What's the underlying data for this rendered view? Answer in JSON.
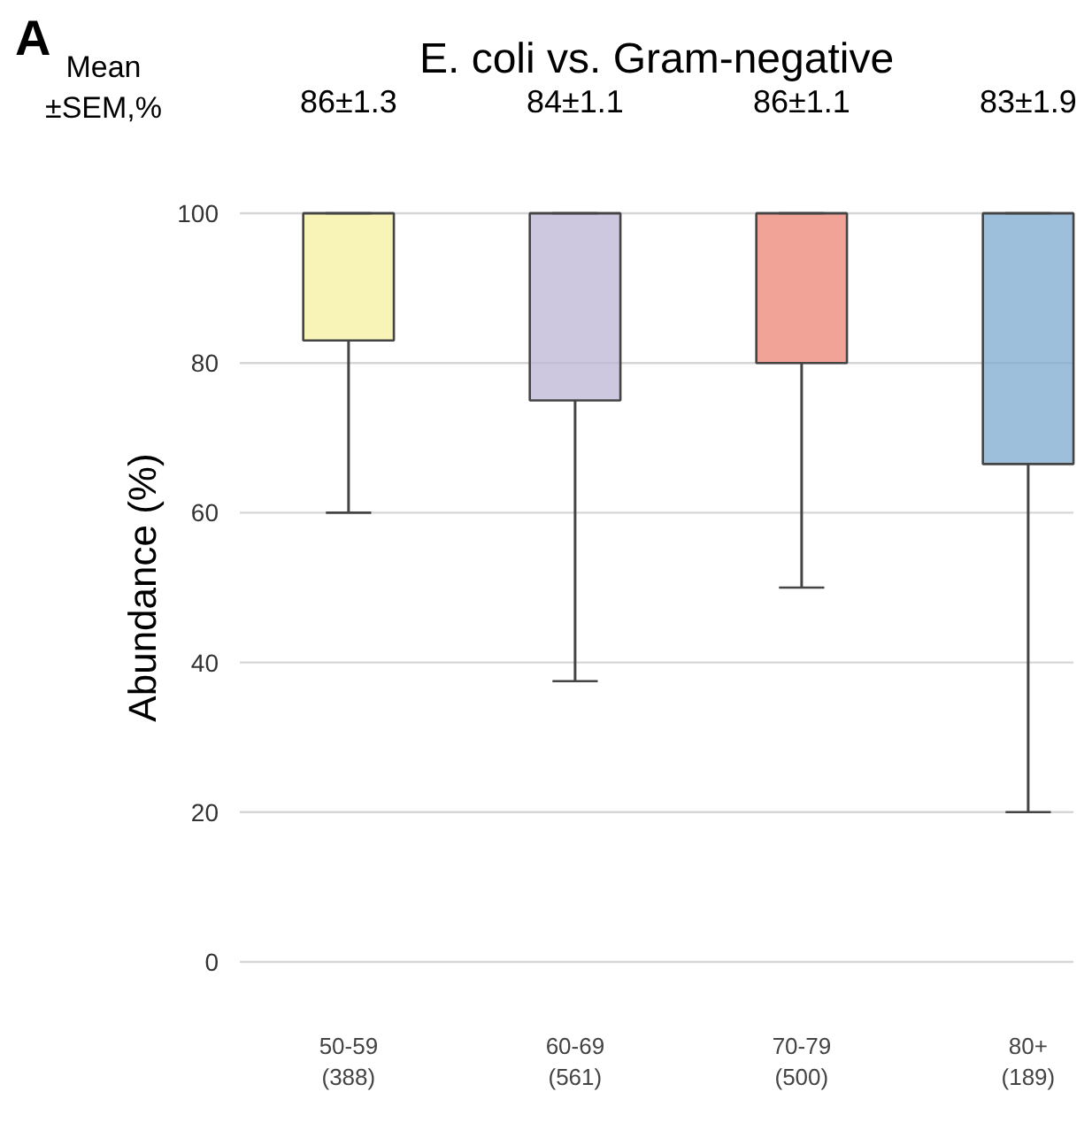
{
  "chart_data": {
    "type": "box",
    "title": "E. coli vs. Gram-negative",
    "ylabel": "Abundance (%)",
    "categories": [
      "50-59\n(388)",
      "60-69\n(561)",
      "70-79\n(500)",
      "80+\n(189)"
    ],
    "boxes": [
      {
        "low": 60,
        "q1": 83,
        "median": 100,
        "q3": 100,
        "high": 100
      },
      {
        "low": 37.5,
        "q1": 75,
        "median": 100,
        "q3": 100,
        "high": 100
      },
      {
        "low": 50,
        "q1": 80,
        "median": 100,
        "q3": 100,
        "high": 100
      },
      {
        "low": 20,
        "q1": 66.5,
        "median": 100,
        "q3": 100,
        "high": 100
      }
    ],
    "colors": [
      "#f5f0a0",
      "#bcb6d6",
      "#ee8474",
      "#7eaacf"
    ],
    "ylim": [
      0,
      100
    ],
    "yticks": [
      0,
      20,
      40,
      60,
      80,
      100
    ],
    "grid": "y",
    "annotations": [
      "A",
      "Mean\n±SEM,%",
      "86±1.3",
      "84±1.1",
      "86±1.1",
      "83±1.9"
    ]
  }
}
